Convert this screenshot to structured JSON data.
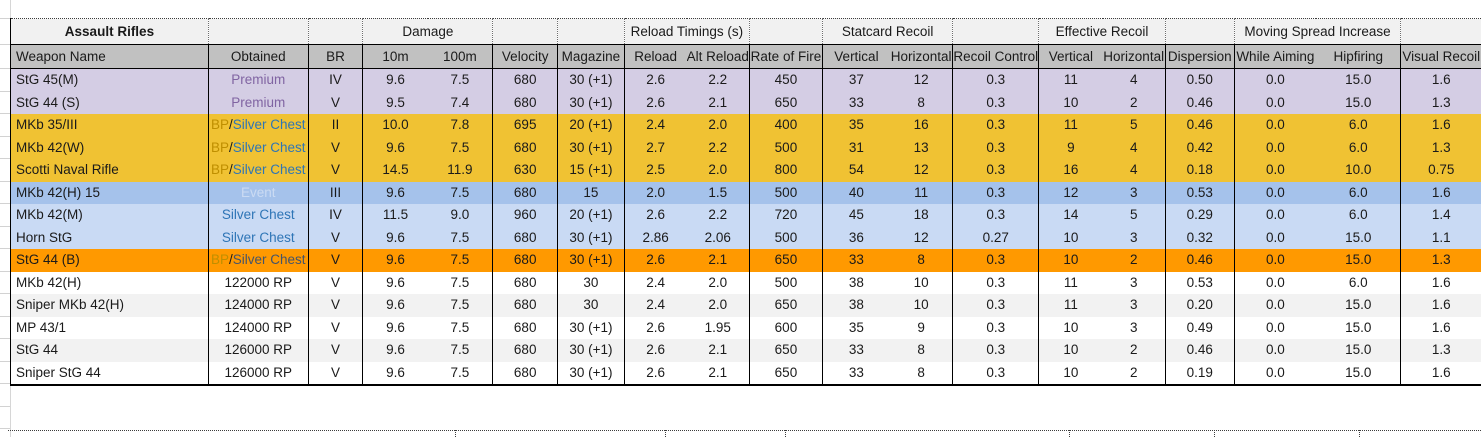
{
  "table": {
    "title": "Assault Rifles",
    "group_headers": [
      {
        "label": "Assault Rifles",
        "span": 1,
        "bold": true
      },
      {
        "label": "",
        "span": 1
      },
      {
        "label": "",
        "span": 1
      },
      {
        "label": "Damage",
        "span": 2
      },
      {
        "label": "",
        "span": 1
      },
      {
        "label": "",
        "span": 1
      },
      {
        "label": "Reload Timings (s)",
        "span": 2
      },
      {
        "label": "",
        "span": 1
      },
      {
        "label": "Statcard Recoil",
        "span": 2
      },
      {
        "label": "",
        "span": 1
      },
      {
        "label": "Effective Recoil",
        "span": 2
      },
      {
        "label": "",
        "span": 1
      },
      {
        "label": "Moving Spread Increase",
        "span": 2
      },
      {
        "label": "",
        "span": 1
      }
    ],
    "columns": [
      {
        "key": "weapon-name",
        "label": "Weapon Name"
      },
      {
        "key": "obtained",
        "label": "Obtained"
      },
      {
        "key": "br",
        "label": "BR"
      },
      {
        "key": "damage-10m",
        "label": "10m"
      },
      {
        "key": "damage-100m",
        "label": "100m"
      },
      {
        "key": "velocity",
        "label": "Velocity"
      },
      {
        "key": "magazine",
        "label": "Magazine"
      },
      {
        "key": "reload",
        "label": "Reload"
      },
      {
        "key": "alt-reload",
        "label": "Alt Reload"
      },
      {
        "key": "rate-of-fire",
        "label": "Rate of Fire"
      },
      {
        "key": "statcard-vertical",
        "label": "Vertical"
      },
      {
        "key": "statcard-horizontal",
        "label": "Horizontal"
      },
      {
        "key": "recoil-control",
        "label": "Recoil Control",
        "small": true
      },
      {
        "key": "effective-vertical",
        "label": "Vertical"
      },
      {
        "key": "effective-horizontal",
        "label": "Horizontal"
      },
      {
        "key": "dispersion",
        "label": "Dispersion"
      },
      {
        "key": "while-aiming",
        "label": "While Aiming"
      },
      {
        "key": "hipfiring",
        "label": "Hipfiring"
      },
      {
        "key": "visual-recoil",
        "label": "Visual Recoil"
      }
    ],
    "rows": [
      {
        "name": "StG 45(M)",
        "obtained": [
          {
            "t": "Premium",
            "c": "premium"
          }
        ],
        "br": "IV",
        "bg": "purple",
        "cells": [
          "9.6",
          "7.5",
          "680",
          "30 (+1)",
          "2.6",
          "2.2",
          "450",
          "37",
          "12",
          "0.3",
          "11",
          "4",
          "0.50",
          "0.0",
          "15.0",
          "1.6"
        ]
      },
      {
        "name": "StG 44 (S)",
        "obtained": [
          {
            "t": "Premium",
            "c": "premium"
          }
        ],
        "br": "V",
        "bg": "purple",
        "cells": [
          "9.5",
          "7.4",
          "680",
          "30 (+1)",
          "2.6",
          "2.1",
          "650",
          "33",
          "8",
          "0.3",
          "10",
          "2",
          "0.46",
          "0.0",
          "15.0",
          "1.3"
        ]
      },
      {
        "name": "MKb 35/III",
        "obtained": [
          {
            "t": "BP",
            "c": "bp"
          },
          {
            "t": "/",
            "c": "slash"
          },
          {
            "t": "Silver Chest",
            "c": "chest"
          }
        ],
        "br": "II",
        "bg": "gold",
        "cells": [
          "10.0",
          "7.8",
          "695",
          "20 (+1)",
          "2.4",
          "2.0",
          "400",
          "35",
          "16",
          "0.3",
          "11",
          "5",
          "0.46",
          "0.0",
          "6.0",
          "1.6"
        ]
      },
      {
        "name": "MKb 42(W)",
        "obtained": [
          {
            "t": "BP",
            "c": "bp"
          },
          {
            "t": "/",
            "c": "slash"
          },
          {
            "t": "Silver Chest",
            "c": "chest"
          }
        ],
        "br": "V",
        "bg": "gold",
        "cells": [
          "9.6",
          "7.5",
          "680",
          "30 (+1)",
          "2.7",
          "2.2",
          "500",
          "31",
          "13",
          "0.3",
          "9",
          "4",
          "0.42",
          "0.0",
          "6.0",
          "1.3"
        ]
      },
      {
        "name": "Scotti Naval Rifle",
        "obtained": [
          {
            "t": "BP",
            "c": "bp"
          },
          {
            "t": "/",
            "c": "slash"
          },
          {
            "t": "Silver Chest",
            "c": "chest"
          }
        ],
        "br": "V",
        "bg": "gold",
        "cells": [
          "14.5",
          "11.9",
          "630",
          "15 (+1)",
          "2.5",
          "2.0",
          "800",
          "54",
          "12",
          "0.3",
          "16",
          "4",
          "0.18",
          "0.0",
          "10.0",
          "0.75"
        ]
      },
      {
        "name": "MKb 42(H) 15",
        "obtained": [
          {
            "t": "Event",
            "c": "event"
          }
        ],
        "br": "III",
        "bg": "event",
        "cells": [
          "9.6",
          "7.5",
          "680",
          "15",
          "2.0",
          "1.5",
          "500",
          "40",
          "11",
          "0.3",
          "12",
          "3",
          "0.53",
          "0.0",
          "6.0",
          "1.6"
        ]
      },
      {
        "name": "MKb 42(M)",
        "obtained": [
          {
            "t": "Silver Chest",
            "c": "chest"
          }
        ],
        "br": "IV",
        "bg": "silver",
        "cells": [
          "11.5",
          "9.0",
          "960",
          "20 (+1)",
          "2.6",
          "2.2",
          "720",
          "45",
          "18",
          "0.3",
          "14",
          "5",
          "0.29",
          "0.0",
          "6.0",
          "1.4"
        ]
      },
      {
        "name": "Horn StG",
        "obtained": [
          {
            "t": "Silver Chest",
            "c": "chest"
          }
        ],
        "br": "V",
        "bg": "silver",
        "cells": [
          "9.6",
          "7.5",
          "680",
          "30 (+1)",
          "2.86",
          "2.06",
          "500",
          "36",
          "12",
          "0.27",
          "10",
          "3",
          "0.32",
          "0.0",
          "15.0",
          "1.1"
        ]
      },
      {
        "name": "StG 44 (B)",
        "obtained": [
          {
            "t": "BP",
            "c": "bp_orange"
          },
          {
            "t": "/",
            "c": "slash"
          },
          {
            "t": "Silver Chest",
            "c": "chest_dark"
          }
        ],
        "br": "V",
        "bg": "orange",
        "cells": [
          "9.6",
          "7.5",
          "680",
          "30 (+1)",
          "2.6",
          "2.1",
          "650",
          "33",
          "8",
          "0.3",
          "10",
          "2",
          "0.46",
          "0.0",
          "15.0",
          "1.3"
        ]
      },
      {
        "name": "MKb 42(H)",
        "obtained": [
          {
            "t": "122000 RP",
            "c": "default"
          }
        ],
        "br": "V",
        "bg": "white",
        "cells": [
          "9.6",
          "7.5",
          "680",
          "30",
          "2.4",
          "2.0",
          "500",
          "38",
          "10",
          "0.3",
          "11",
          "3",
          "0.53",
          "0.0",
          "6.0",
          "1.6"
        ]
      },
      {
        "name": "Sniper MKb 42(H)",
        "obtained": [
          {
            "t": "124000 RP",
            "c": "default"
          }
        ],
        "br": "V",
        "bg": "gray",
        "cells": [
          "9.6",
          "7.5",
          "680",
          "30",
          "2.4",
          "2.0",
          "650",
          "38",
          "10",
          "0.3",
          "11",
          "3",
          "0.20",
          "0.0",
          "15.0",
          "1.6"
        ]
      },
      {
        "name": "MP 43/1",
        "obtained": [
          {
            "t": "124000 RP",
            "c": "default"
          }
        ],
        "br": "V",
        "bg": "white",
        "cells": [
          "9.6",
          "7.5",
          "680",
          "30 (+1)",
          "2.6",
          "1.95",
          "600",
          "35",
          "9",
          "0.3",
          "10",
          "3",
          "0.49",
          "0.0",
          "15.0",
          "1.6"
        ]
      },
      {
        "name": "StG 44",
        "obtained": [
          {
            "t": "126000 RP",
            "c": "default"
          }
        ],
        "br": "V",
        "bg": "gray",
        "cells": [
          "9.6",
          "7.5",
          "680",
          "30 (+1)",
          "2.6",
          "2.1",
          "650",
          "33",
          "8",
          "0.3",
          "10",
          "2",
          "0.46",
          "0.0",
          "15.0",
          "1.3"
        ]
      },
      {
        "name": "Sniper StG 44",
        "obtained": [
          {
            "t": "126000 RP",
            "c": "default"
          }
        ],
        "br": "V",
        "bg": "white",
        "cells": [
          "9.6",
          "7.5",
          "680",
          "30 (+1)",
          "2.6",
          "2.1",
          "650",
          "33",
          "8",
          "0.3",
          "10",
          "2",
          "0.19",
          "0.0",
          "15.0",
          "1.6"
        ]
      }
    ]
  },
  "colors": {
    "row_bg": {
      "purple": "#d4cde4",
      "gold": "#f0c233",
      "event": "#a5c2eb",
      "silver": "#c9daf4",
      "orange": "#ff9900",
      "white": "#ffffff",
      "gray": "#f2f2f2"
    },
    "text": {
      "premium": "#8064a2",
      "bp": "#bf8f00",
      "bp_orange": "#bf8f00",
      "slash": "#1a1a1a",
      "chest": "#2e75b6",
      "chest_dark": "#44546a",
      "event": "#cbdbf3",
      "default": "#1a1a1a"
    },
    "header_bg": "#c1c1c1",
    "group_header_bg": "#f1f1f1"
  }
}
